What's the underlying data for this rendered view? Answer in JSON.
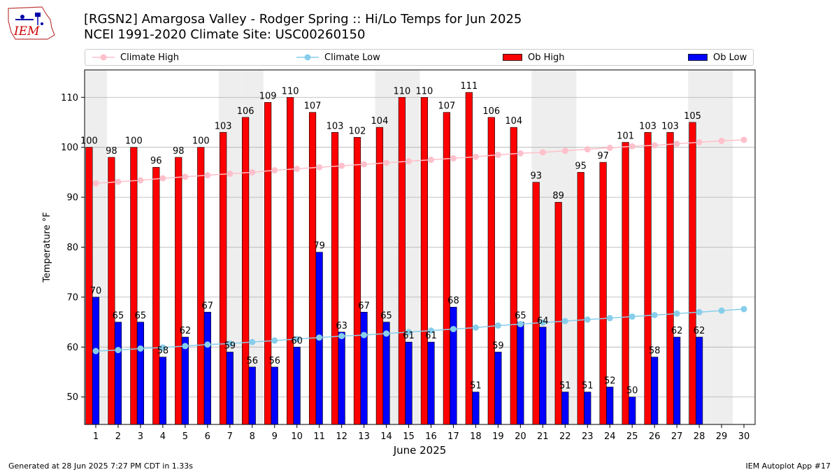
{
  "header": {
    "title_line1": "[RGSN2] Amargosa Valley - Rodger Spring :: Hi/Lo Temps for Jun 2025",
    "title_line2": "NCEI 1991-2020 Climate Site: USC00260150",
    "logo_text": "IEM"
  },
  "legend": {
    "items": [
      {
        "label": "Climate High"
      },
      {
        "label": "Climate Low"
      },
      {
        "label": "Ob High"
      },
      {
        "label": "Ob Low"
      }
    ]
  },
  "footer": {
    "generated": "Generated at 28 Jun 2025 7:27 PM CDT in 1.33s",
    "app": "IEM Autoplot App #17"
  },
  "colors": {
    "ob_high": "#ff0000",
    "ob_low": "#0000ff",
    "climate_high": "#ffc0cb",
    "climate_low": "#87ceeb",
    "weekend_band": "#eeeeee",
    "grid": "#b0b0b0"
  },
  "chart_data": {
    "type": "bar",
    "xlabel": "June 2025",
    "ylabel": "Temperature °F",
    "ylim": [
      44.5,
      115.5
    ],
    "yticks": [
      50,
      60,
      70,
      80,
      90,
      100,
      110
    ],
    "x": [
      1,
      2,
      3,
      4,
      5,
      6,
      7,
      8,
      9,
      10,
      11,
      12,
      13,
      14,
      15,
      16,
      17,
      18,
      19,
      20,
      21,
      22,
      23,
      24,
      25,
      26,
      27,
      28,
      29,
      30
    ],
    "grid": "horizontal",
    "weekend_days": [
      1,
      7,
      8,
      14,
      15,
      21,
      22,
      28,
      29
    ],
    "series": [
      {
        "name": "Ob High",
        "kind": "bar",
        "values": [
          100,
          98,
          100,
          96,
          98,
          100,
          103,
          106,
          109,
          110,
          107,
          103,
          102,
          104,
          110,
          110,
          107,
          111,
          106,
          104,
          93,
          89,
          95,
          97,
          101,
          103,
          103,
          105,
          null,
          null
        ]
      },
      {
        "name": "Ob Low",
        "kind": "bar",
        "values": [
          70,
          65,
          65,
          58,
          62,
          67,
          59,
          56,
          56,
          60,
          79,
          63,
          67,
          65,
          61,
          61,
          68,
          51,
          59,
          65,
          64,
          51,
          51,
          52,
          50,
          58,
          62,
          62,
          null,
          null
        ]
      },
      {
        "name": "Climate High",
        "kind": "line",
        "values": [
          92.8,
          93.1,
          93.4,
          93.8,
          94.1,
          94.4,
          94.7,
          95.0,
          95.4,
          95.7,
          96.0,
          96.3,
          96.6,
          96.9,
          97.2,
          97.5,
          97.8,
          98.1,
          98.5,
          98.8,
          99.0,
          99.3,
          99.6,
          99.9,
          100.2,
          100.4,
          100.7,
          101.0,
          101.3,
          101.5
        ]
      },
      {
        "name": "Climate Low",
        "kind": "line",
        "values": [
          59.2,
          59.4,
          59.7,
          59.9,
          60.2,
          60.5,
          60.7,
          61.0,
          61.3,
          61.6,
          61.9,
          62.2,
          62.4,
          62.7,
          63.0,
          63.3,
          63.6,
          63.9,
          64.3,
          64.6,
          64.9,
          65.2,
          65.5,
          65.8,
          66.1,
          66.4,
          66.7,
          67.0,
          67.3,
          67.6
        ]
      }
    ]
  }
}
